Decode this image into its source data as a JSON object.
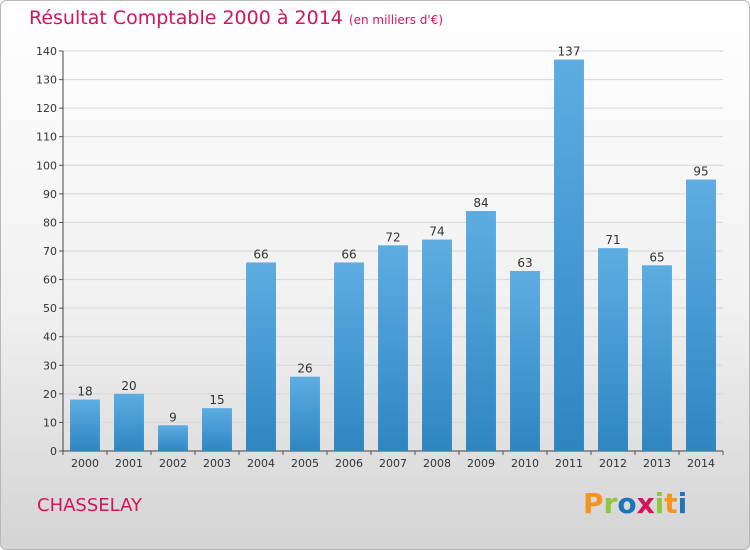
{
  "title": "Résultat Comptable 2000 à 2014",
  "subtitle": "(en milliers d'€)",
  "commune": "CHASSELAY",
  "logo": {
    "letters": [
      "P",
      "r",
      "o",
      "x",
      "i",
      "t",
      "i"
    ],
    "colors": [
      "#f7941d",
      "#8dc63f",
      "#1c75bc",
      "#d4145a",
      "#8dc63f",
      "#f7941d",
      "#1c75bc"
    ]
  },
  "colors": {
    "title": "#d4145a",
    "bar_top": "#5dade2",
    "bar_bottom": "#2e86c1",
    "grid": "#d6d6d6"
  },
  "chart_data": {
    "type": "bar",
    "categories": [
      "2000",
      "2001",
      "2002",
      "2003",
      "2004",
      "2005",
      "2006",
      "2007",
      "2008",
      "2009",
      "2010",
      "2011",
      "2012",
      "2013",
      "2014"
    ],
    "values": [
      18,
      20,
      9,
      15,
      66,
      26,
      66,
      72,
      74,
      84,
      63,
      137,
      71,
      65,
      95
    ],
    "ylim": [
      0,
      140
    ],
    "yticks": [
      0,
      10,
      20,
      30,
      40,
      50,
      60,
      70,
      80,
      90,
      100,
      110,
      120,
      130,
      140
    ],
    "grid": true
  }
}
